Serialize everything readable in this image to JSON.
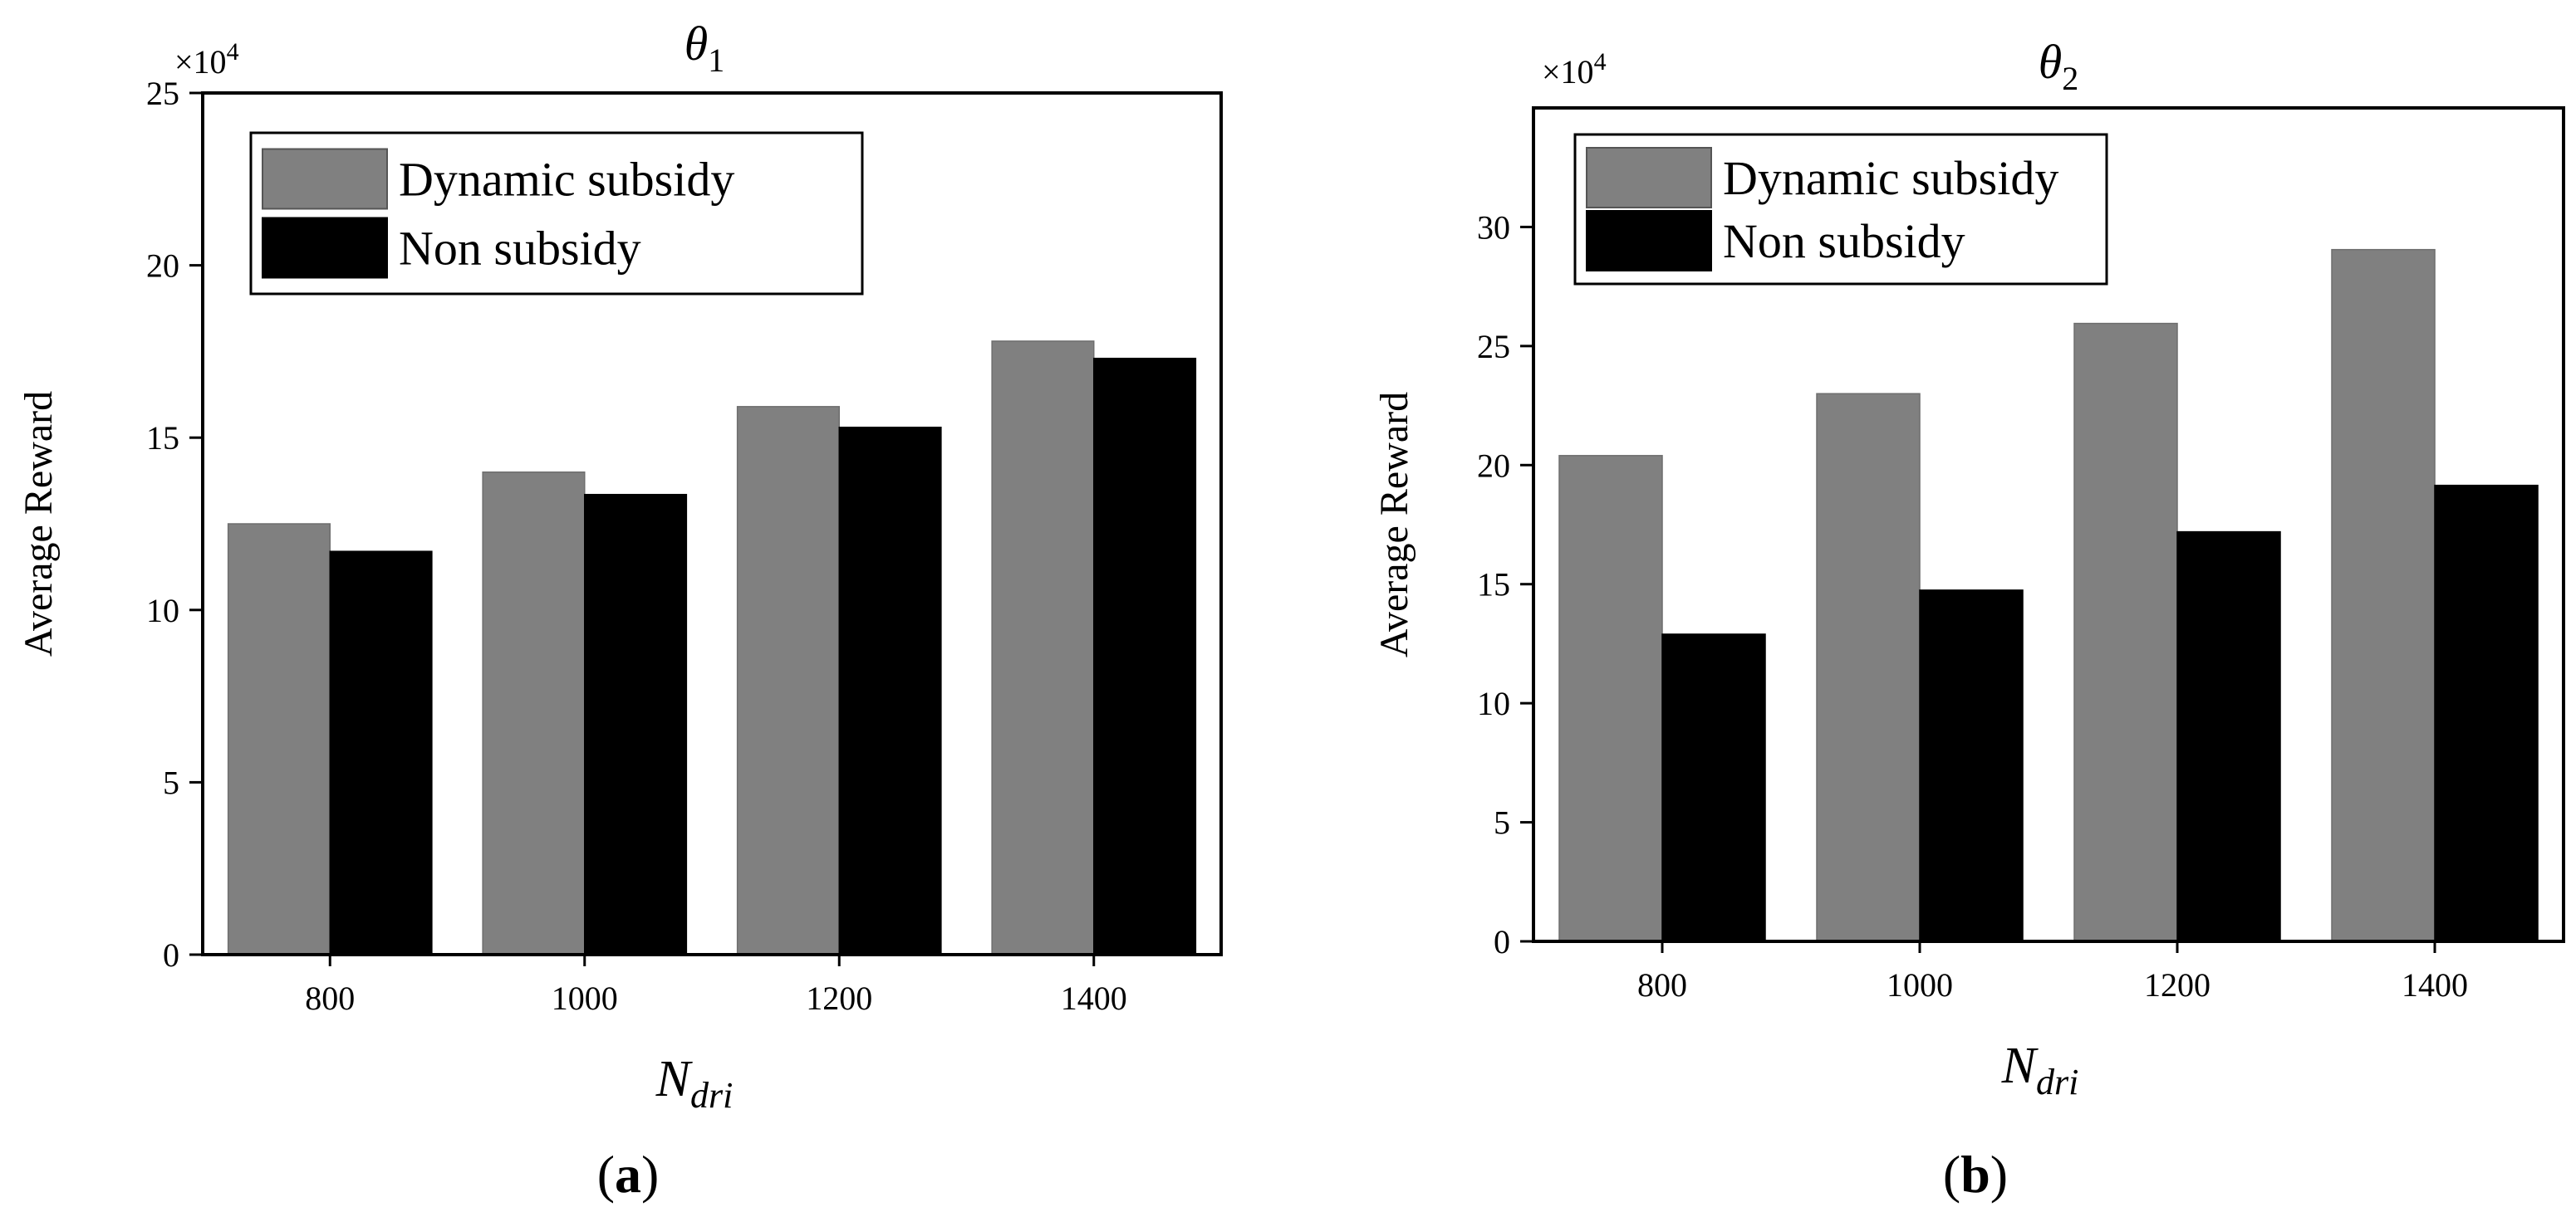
{
  "colors": {
    "dynamic": "#808080",
    "non": "#000000",
    "axis": "#000000"
  },
  "chart_data": [
    {
      "type": "bar",
      "panel_label": "a",
      "title_base": "θ",
      "title_sub": "1",
      "ylabel": "Average Reward",
      "xlabel_base": "N",
      "xlabel_sub": "dri",
      "exponent_prefix": "×10",
      "exponent_power": "4",
      "categories": [
        "800",
        "1000",
        "1200",
        "1400"
      ],
      "ylim": [
        0,
        25
      ],
      "yticks": [
        0,
        5,
        10,
        15,
        20,
        25
      ],
      "series": [
        {
          "name": "Dynamic subsidy",
          "values": [
            12.5,
            14.0,
            15.9,
            17.8
          ]
        },
        {
          "name": "Non subsidy",
          "values": [
            11.7,
            13.35,
            15.3,
            17.3
          ]
        }
      ]
    },
    {
      "type": "bar",
      "panel_label": "b",
      "title_base": "θ",
      "title_sub": "2",
      "ylabel": "Average Reward",
      "xlabel_base": "N",
      "xlabel_sub": "dri",
      "exponent_prefix": "×10",
      "exponent_power": "4",
      "categories": [
        "800",
        "1000",
        "1200",
        "1400"
      ],
      "ylim": [
        0,
        35
      ],
      "yticks": [
        0,
        5,
        10,
        15,
        20,
        25,
        30
      ],
      "series": [
        {
          "name": "Dynamic subsidy",
          "values": [
            20.4,
            23.0,
            25.95,
            29.05
          ]
        },
        {
          "name": "Non subsidy",
          "values": [
            12.9,
            14.75,
            17.2,
            19.15
          ]
        }
      ]
    }
  ]
}
